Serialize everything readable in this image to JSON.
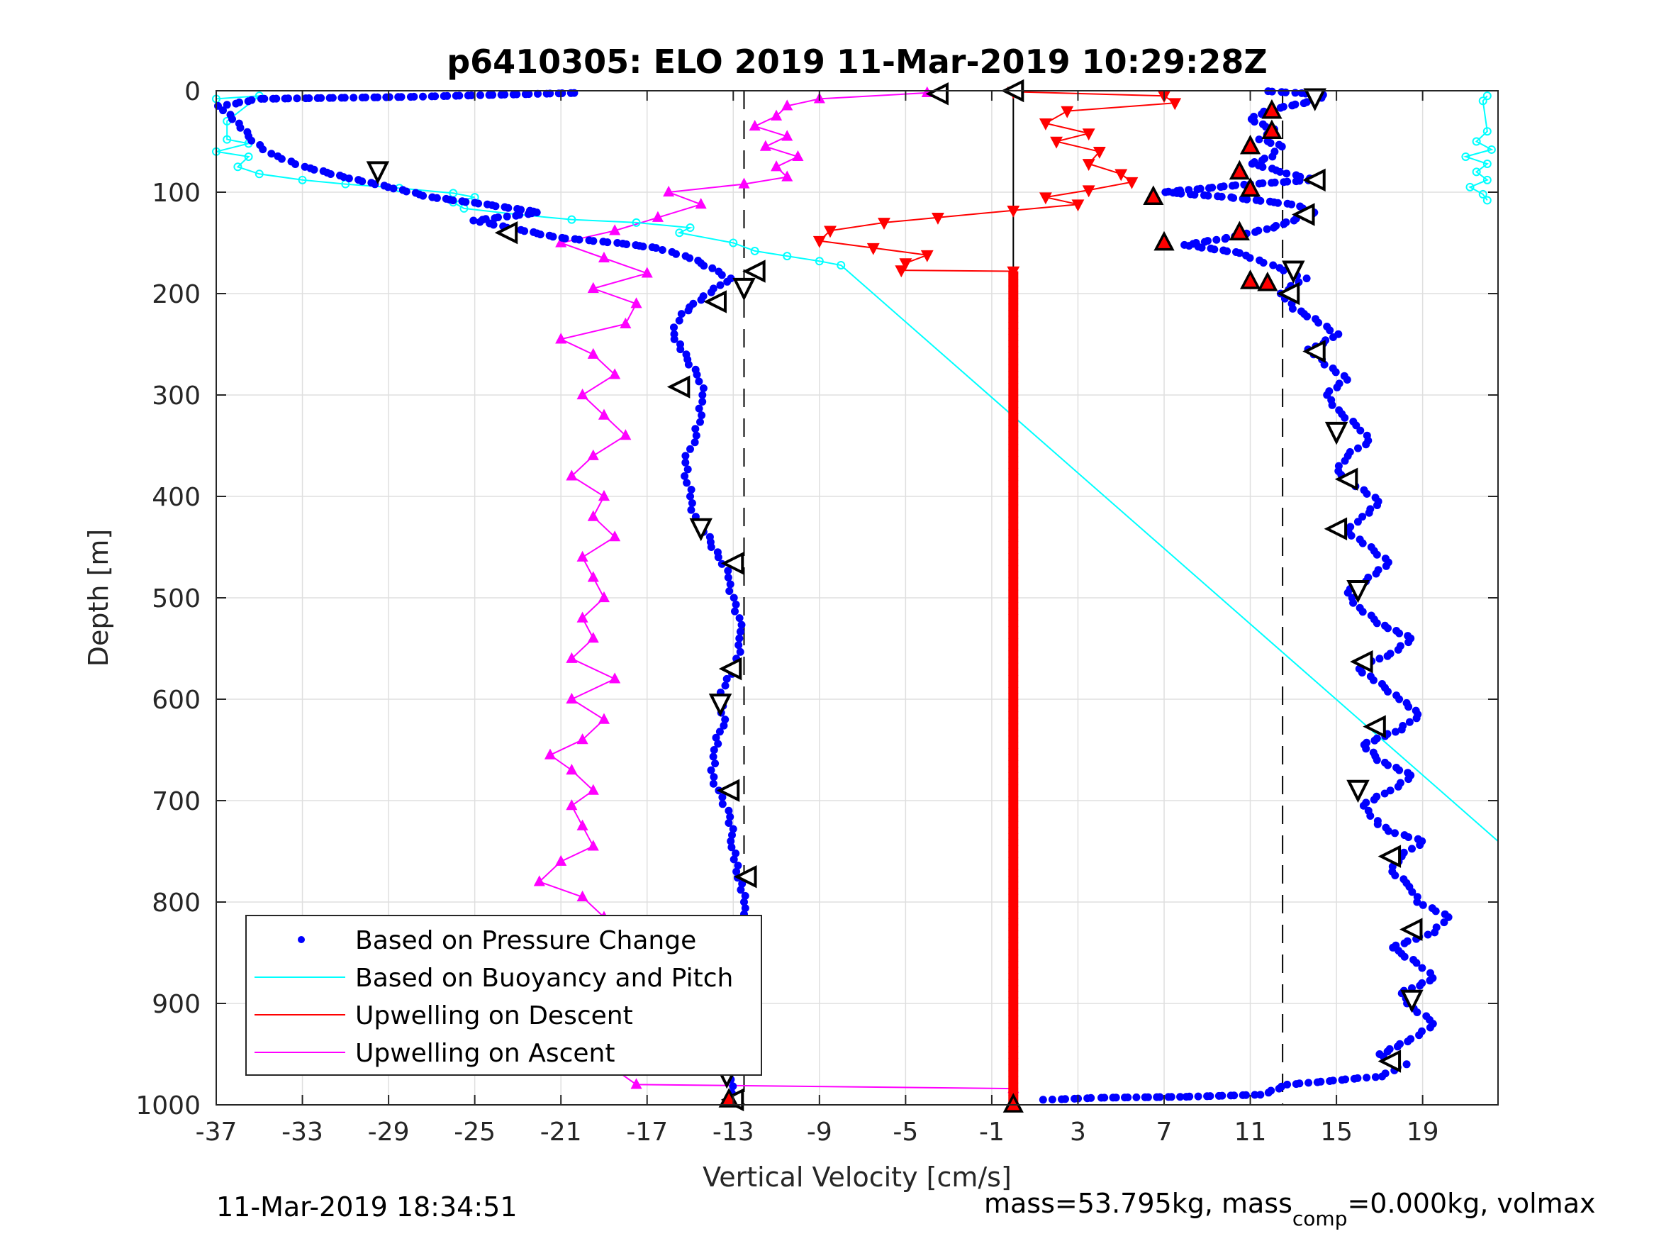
{
  "chart_data": {
    "type": "scatter",
    "title": "p6410305: ELO 2019 11-Mar-2019 10:29:28Z",
    "xlabel": "Vertical Velocity [cm/s]",
    "ylabel": "Depth [m]",
    "xlim": [
      -37,
      22.5
    ],
    "ylim": [
      1000,
      0
    ],
    "y_reversed": true,
    "grid": true,
    "xticks": [
      -37,
      -33,
      -29,
      -25,
      -21,
      -17,
      -13,
      -9,
      -5,
      -1,
      3,
      7,
      11,
      15,
      19
    ],
    "yticks": [
      0,
      100,
      200,
      300,
      400,
      500,
      600,
      700,
      800,
      900,
      1000
    ],
    "legend_position": "bottom-left",
    "reference_lines": [
      {
        "x": -12.5,
        "style": "dashed",
        "color": "#000000"
      },
      {
        "x": 0,
        "style": "solid",
        "color": "#000000"
      },
      {
        "x": 12.5,
        "style": "dashed",
        "color": "#000000"
      }
    ],
    "series": [
      {
        "name": "Based on Pressure Change",
        "color": "#0000ff",
        "marker": "dot",
        "descent": [
          [
            -13.0,
            995
          ],
          [
            -13.2,
            975
          ],
          [
            -12.8,
            950
          ],
          [
            -12.5,
            920
          ],
          [
            -12.3,
            890
          ],
          [
            -12.4,
            860
          ],
          [
            -12.2,
            830
          ],
          [
            -12.5,
            800
          ],
          [
            -12.8,
            770
          ],
          [
            -13.0,
            740
          ],
          [
            -13.3,
            710
          ],
          [
            -13.7,
            690
          ],
          [
            -14.0,
            670
          ],
          [
            -13.8,
            650
          ],
          [
            -13.5,
            620
          ],
          [
            -13.6,
            600
          ],
          [
            -13.3,
            580
          ],
          [
            -12.8,
            560
          ],
          [
            -12.6,
            540
          ],
          [
            -12.8,
            520
          ],
          [
            -13.0,
            500
          ],
          [
            -13.2,
            480
          ],
          [
            -13.6,
            460
          ],
          [
            -14.2,
            440
          ],
          [
            -14.8,
            420
          ],
          [
            -15.0,
            400
          ],
          [
            -15.2,
            380
          ],
          [
            -15.1,
            360
          ],
          [
            -14.8,
            340
          ],
          [
            -14.5,
            320
          ],
          [
            -14.4,
            300
          ],
          [
            -14.6,
            280
          ],
          [
            -15.3,
            260
          ],
          [
            -15.8,
            240
          ],
          [
            -15.4,
            220
          ],
          [
            -14.8,
            210
          ],
          [
            -13.8,
            195
          ],
          [
            -13.2,
            185
          ],
          [
            -14.0,
            175
          ],
          [
            -15.0,
            165
          ],
          [
            -16.5,
            155
          ],
          [
            -18.5,
            150
          ],
          [
            -21.0,
            145
          ],
          [
            -23.5,
            135
          ],
          [
            -25.0,
            128
          ],
          [
            -22.0,
            120
          ],
          [
            -24.5,
            112
          ],
          [
            -27.0,
            105
          ],
          [
            -29.0,
            95
          ],
          [
            -31.0,
            85
          ],
          [
            -33.0,
            75
          ],
          [
            -34.5,
            62
          ],
          [
            -35.5,
            45
          ],
          [
            -36.2,
            28
          ],
          [
            -36.8,
            15
          ],
          [
            -35.0,
            8
          ],
          [
            -28.0,
            6
          ],
          [
            -20.0,
            2
          ]
        ],
        "ascent": [
          [
            1.5,
            995
          ],
          [
            4.0,
            993
          ],
          [
            8.0,
            992
          ],
          [
            11.5,
            990
          ],
          [
            12.8,
            980
          ],
          [
            17.0,
            972
          ],
          [
            18.2,
            960
          ],
          [
            17.0,
            950
          ],
          [
            18.5,
            935
          ],
          [
            19.6,
            920
          ],
          [
            18.5,
            905
          ],
          [
            18.0,
            890
          ],
          [
            19.5,
            875
          ],
          [
            18.8,
            860
          ],
          [
            17.5,
            845
          ],
          [
            19.5,
            830
          ],
          [
            20.2,
            815
          ],
          [
            18.8,
            800
          ],
          [
            18.5,
            785
          ],
          [
            17.5,
            770
          ],
          [
            18.0,
            755
          ],
          [
            19.0,
            740
          ],
          [
            17.5,
            730
          ],
          [
            16.8,
            720
          ],
          [
            16.2,
            705
          ],
          [
            17.5,
            690
          ],
          [
            18.5,
            675
          ],
          [
            17.0,
            660
          ],
          [
            16.2,
            645
          ],
          [
            18.0,
            630
          ],
          [
            18.8,
            615
          ],
          [
            18.0,
            600
          ],
          [
            17.0,
            585
          ],
          [
            16.0,
            570
          ],
          [
            17.5,
            555
          ],
          [
            18.5,
            540
          ],
          [
            17.0,
            525
          ],
          [
            16.0,
            510
          ],
          [
            15.5,
            495
          ],
          [
            16.5,
            480
          ],
          [
            17.5,
            465
          ],
          [
            16.5,
            450
          ],
          [
            15.5,
            435
          ],
          [
            16.2,
            420
          ],
          [
            17.0,
            405
          ],
          [
            16.0,
            390
          ],
          [
            15.0,
            375
          ],
          [
            15.5,
            360
          ],
          [
            16.5,
            345
          ],
          [
            16.0,
            330
          ],
          [
            15.0,
            315
          ],
          [
            14.5,
            300
          ],
          [
            15.5,
            285
          ],
          [
            14.5,
            270
          ],
          [
            13.8,
            255
          ],
          [
            15.0,
            240
          ],
          [
            14.0,
            225
          ],
          [
            13.0,
            215
          ],
          [
            12.5,
            200
          ],
          [
            13.5,
            185
          ],
          [
            12.0,
            172
          ],
          [
            10.5,
            160
          ],
          [
            8.0,
            152
          ],
          [
            10.0,
            145
          ],
          [
            12.0,
            135
          ],
          [
            13.0,
            128
          ],
          [
            14.0,
            120
          ],
          [
            13.0,
            112
          ],
          [
            10.0,
            105
          ],
          [
            7.0,
            100
          ],
          [
            11.0,
            92
          ],
          [
            14.0,
            88
          ],
          [
            12.5,
            80
          ],
          [
            11.0,
            72
          ],
          [
            12.0,
            65
          ],
          [
            12.5,
            55
          ],
          [
            11.5,
            48
          ],
          [
            12.0,
            38
          ],
          [
            11.0,
            28
          ],
          [
            12.0,
            18
          ],
          [
            14.0,
            10
          ],
          [
            14.5,
            4
          ],
          [
            13.0,
            2
          ],
          [
            11.5,
            0
          ]
        ]
      },
      {
        "name": "Based on Buoyancy and Pitch",
        "color": "#00ffff",
        "marker": "circle",
        "points": [
          [
            -37,
            8
          ],
          [
            -35,
            5
          ],
          [
            -36.5,
            30
          ],
          [
            -36.5,
            48
          ],
          [
            -35.5,
            52
          ],
          [
            -37,
            60
          ],
          [
            -35.5,
            65
          ],
          [
            -36.0,
            75
          ],
          [
            -35.0,
            82
          ],
          [
            -33.0,
            88
          ],
          [
            -31.0,
            92
          ],
          [
            -28.5,
            96
          ],
          [
            -26.0,
            101
          ],
          [
            -25.0,
            105
          ],
          [
            -26.0,
            110
          ],
          [
            -25.5,
            116
          ],
          [
            -23.0,
            122
          ],
          [
            -20.5,
            127
          ],
          [
            -17.5,
            130
          ],
          [
            -15.0,
            135
          ],
          [
            -15.5,
            140
          ],
          [
            -13.0,
            150
          ],
          [
            -12.0,
            158
          ],
          [
            -10.5,
            163
          ],
          [
            -9.0,
            168
          ],
          [
            -8.0,
            172
          ],
          [
            22.5,
            740
          ]
        ],
        "right_edge_points": [
          [
            22.0,
            5
          ],
          [
            21.8,
            10
          ],
          [
            22.0,
            40
          ],
          [
            21.5,
            50
          ],
          [
            22.2,
            58
          ],
          [
            21.0,
            65
          ],
          [
            22.0,
            72
          ],
          [
            21.5,
            80
          ],
          [
            22.0,
            88
          ],
          [
            21.2,
            95
          ],
          [
            21.8,
            102
          ],
          [
            22.0,
            108
          ]
        ]
      },
      {
        "name": "Upwelling on Descent",
        "color": "#ff0000",
        "marker": "triangle-down",
        "points": [
          [
            0,
            1
          ],
          [
            7.0,
            5
          ],
          [
            7.5,
            12
          ],
          [
            2.5,
            20
          ],
          [
            1.5,
            32
          ],
          [
            3.5,
            42
          ],
          [
            2.0,
            50
          ],
          [
            4.0,
            60
          ],
          [
            3.5,
            72
          ],
          [
            5.0,
            82
          ],
          [
            5.5,
            90
          ],
          [
            3.5,
            98
          ],
          [
            1.5,
            105
          ],
          [
            3.0,
            112
          ],
          [
            0.0,
            118
          ],
          [
            -3.5,
            125
          ],
          [
            -6.0,
            130
          ],
          [
            -8.5,
            138
          ],
          [
            -9.0,
            148
          ],
          [
            -6.5,
            155
          ],
          [
            -4.0,
            162
          ],
          [
            -5.0,
            170
          ],
          [
            -5.2,
            177
          ],
          [
            0,
            178
          ]
        ],
        "vertical_stack": {
          "x": 0,
          "from_depth": 178,
          "to_depth": 1000
        }
      },
      {
        "name": "Upwelling on Ascent",
        "color": "#ff00ff",
        "marker": "triangle-up",
        "points": [
          [
            0,
            984
          ],
          [
            -17.5,
            980
          ],
          [
            -19.5,
            950
          ],
          [
            -16.5,
            935
          ],
          [
            -19.0,
            920
          ],
          [
            -20.0,
            905
          ],
          [
            -16.5,
            885
          ],
          [
            -19.5,
            870
          ],
          [
            -18.5,
            850
          ],
          [
            -20.5,
            830
          ],
          [
            -19.0,
            815
          ],
          [
            -20.0,
            795
          ],
          [
            -22.0,
            780
          ],
          [
            -21.0,
            760
          ],
          [
            -19.5,
            745
          ],
          [
            -20.0,
            725
          ],
          [
            -20.5,
            705
          ],
          [
            -19.5,
            690
          ],
          [
            -20.5,
            670
          ],
          [
            -21.5,
            655
          ],
          [
            -20.0,
            640
          ],
          [
            -19.0,
            620
          ],
          [
            -20.5,
            600
          ],
          [
            -18.5,
            580
          ],
          [
            -20.5,
            560
          ],
          [
            -19.5,
            540
          ],
          [
            -20.0,
            520
          ],
          [
            -19.0,
            500
          ],
          [
            -19.5,
            480
          ],
          [
            -20.0,
            460
          ],
          [
            -18.5,
            440
          ],
          [
            -19.5,
            420
          ],
          [
            -19.0,
            400
          ],
          [
            -20.5,
            380
          ],
          [
            -19.5,
            360
          ],
          [
            -18.0,
            340
          ],
          [
            -19.0,
            320
          ],
          [
            -20.0,
            300
          ],
          [
            -18.5,
            280
          ],
          [
            -19.5,
            260
          ],
          [
            -21.0,
            245
          ],
          [
            -18.0,
            230
          ],
          [
            -17.5,
            210
          ],
          [
            -19.5,
            195
          ],
          [
            -17.0,
            180
          ],
          [
            -19.0,
            165
          ],
          [
            -21.0,
            150
          ],
          [
            -18.5,
            138
          ],
          [
            -16.5,
            125
          ],
          [
            -14.5,
            112
          ],
          [
            -16.0,
            100
          ],
          [
            -12.5,
            92
          ],
          [
            -10.5,
            85
          ],
          [
            -11.0,
            75
          ],
          [
            -10.0,
            65
          ],
          [
            -11.5,
            55
          ],
          [
            -10.5,
            45
          ],
          [
            -12.0,
            35
          ],
          [
            -11.0,
            25
          ],
          [
            -10.5,
            15
          ],
          [
            -9.0,
            8
          ],
          [
            -4.0,
            2
          ]
        ]
      }
    ],
    "hollow_markers": [
      [
        -13.0,
        995
      ],
      [
        -13.3,
        972
      ],
      [
        -12.8,
        950
      ],
      [
        -12.4,
        895
      ],
      [
        -12.2,
        830
      ],
      [
        -12.4,
        775
      ],
      [
        -13.2,
        690
      ],
      [
        -13.6,
        605
      ],
      [
        -13.1,
        570
      ],
      [
        -13.0,
        466
      ],
      [
        -14.5,
        432
      ],
      [
        -15.5,
        292
      ],
      [
        -13.8,
        208
      ],
      [
        -12.5,
        195
      ],
      [
        -12.0,
        178
      ],
      [
        -23.5,
        140
      ],
      [
        -29.5,
        80
      ],
      [
        -3.5,
        3
      ],
      [
        0,
        0
      ],
      [
        14.0,
        8
      ],
      [
        14.0,
        88
      ],
      [
        13.5,
        122
      ],
      [
        13.0,
        178
      ],
      [
        12.8,
        200
      ],
      [
        14.0,
        257
      ],
      [
        15.0,
        337
      ],
      [
        15.5,
        383
      ],
      [
        15.0,
        432
      ],
      [
        16.0,
        493
      ],
      [
        16.2,
        563
      ],
      [
        16.8,
        627
      ],
      [
        16.0,
        690
      ],
      [
        17.5,
        755
      ],
      [
        18.5,
        827
      ],
      [
        18.5,
        897
      ],
      [
        17.5,
        957
      ]
    ],
    "filled_red_markers": [
      [
        0,
        1000
      ],
      [
        -13.2,
        995
      ],
      [
        6.5,
        105
      ],
      [
        7.0,
        150
      ],
      [
        10.5,
        80
      ],
      [
        10.5,
        140
      ],
      [
        11.0,
        188
      ],
      [
        11.0,
        55
      ],
      [
        11.0,
        97
      ],
      [
        12.0,
        20
      ],
      [
        12.0,
        40
      ],
      [
        11.8,
        190
      ]
    ]
  },
  "footer": {
    "timestamp": "11-Mar-2019 18:34:51",
    "mass_text_prefix": "mass=53.795kg, mass",
    "mass_sub": "comp",
    "mass_text_suffix": "=0.000kg, volmax"
  }
}
